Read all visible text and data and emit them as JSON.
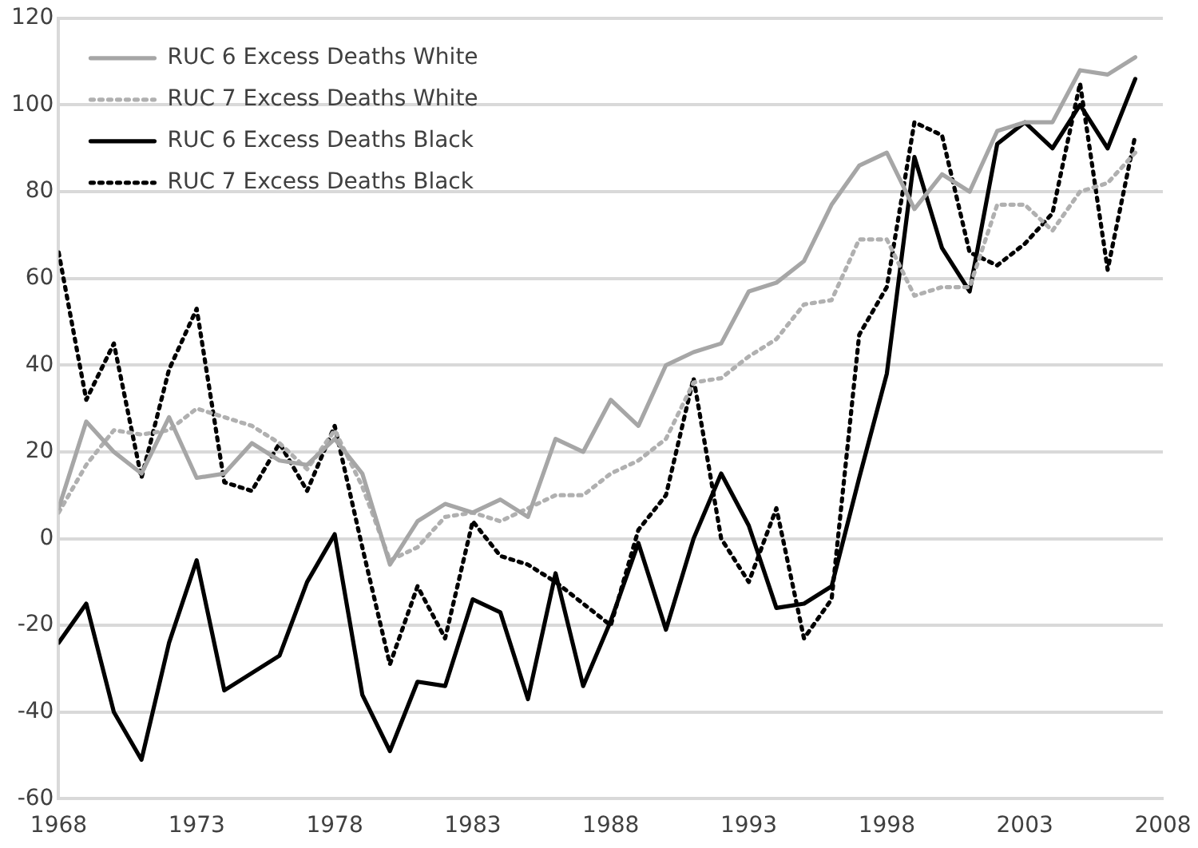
{
  "chart_data": {
    "type": "line",
    "x": [
      1968,
      1969,
      1970,
      1971,
      1972,
      1973,
      1974,
      1975,
      1976,
      1977,
      1978,
      1979,
      1980,
      1981,
      1982,
      1983,
      1984,
      1985,
      1986,
      1987,
      1988,
      1989,
      1990,
      1991,
      1992,
      1993,
      1994,
      1995,
      1996,
      1997,
      1998,
      1999,
      2000,
      2001,
      2002,
      2003,
      2004,
      2005,
      2006,
      2007
    ],
    "series": [
      {
        "name": "RUC 6 Excess Deaths White",
        "color": "#a6a6a6",
        "line_style": "solid",
        "values": [
          7,
          27,
          20,
          15,
          28,
          14,
          15,
          22,
          18,
          17,
          23,
          15,
          -6,
          4,
          8,
          6,
          9,
          5,
          23,
          20,
          32,
          26,
          40,
          43,
          45,
          57,
          59,
          64,
          77,
          86,
          89,
          76,
          84,
          80,
          94,
          96,
          96,
          108,
          107,
          111
        ]
      },
      {
        "name": "RUC 7 Excess Deaths White",
        "color": "#b0b0b0",
        "line_style": "dotted",
        "values": [
          6,
          17,
          25,
          24,
          25,
          30,
          28,
          26,
          22,
          16,
          25,
          12,
          -5,
          -2,
          5,
          6,
          4,
          7,
          10,
          10,
          15,
          18,
          23,
          36,
          37,
          42,
          46,
          54,
          55,
          69,
          69,
          56,
          58,
          58,
          77,
          77,
          71,
          80,
          82,
          89
        ]
      },
      {
        "name": "RUC 6 Excess Deaths Black",
        "color": "#000000",
        "line_style": "solid",
        "values": [
          -24,
          -15,
          -40,
          -51,
          -24,
          -5,
          -35,
          -31,
          -27,
          -10,
          1,
          -36,
          -49,
          -33,
          -34,
          -14,
          -17,
          -37,
          -8,
          -34,
          -19,
          -1,
          -21,
          0,
          15,
          3,
          -16,
          -15,
          -11,
          14,
          38,
          88,
          67,
          57,
          91,
          96,
          90,
          100,
          90,
          106
        ]
      },
      {
        "name": "RUC 7 Excess Deaths Black",
        "color": "#000000",
        "line_style": "dotted",
        "values": [
          66,
          32,
          45,
          14,
          39,
          53,
          13,
          11,
          22,
          11,
          26,
          -2,
          -29,
          -11,
          -23,
          4,
          -4,
          -6,
          -10,
          -15,
          -20,
          2,
          10,
          37,
          0,
          -10,
          7,
          -23,
          -14,
          47,
          58,
          96,
          93,
          66,
          63,
          68,
          75,
          105,
          62,
          93
        ]
      }
    ],
    "xlim": [
      1968,
      2008
    ],
    "xticks": [
      1968,
      1973,
      1978,
      1983,
      1988,
      1993,
      1998,
      2003,
      2008
    ],
    "ylim": [
      -60,
      120
    ],
    "yticks": [
      -60,
      -40,
      -20,
      0,
      20,
      40,
      60,
      80,
      100,
      120
    ],
    "grid": "y",
    "legend": "top left",
    "marker": "none"
  }
}
